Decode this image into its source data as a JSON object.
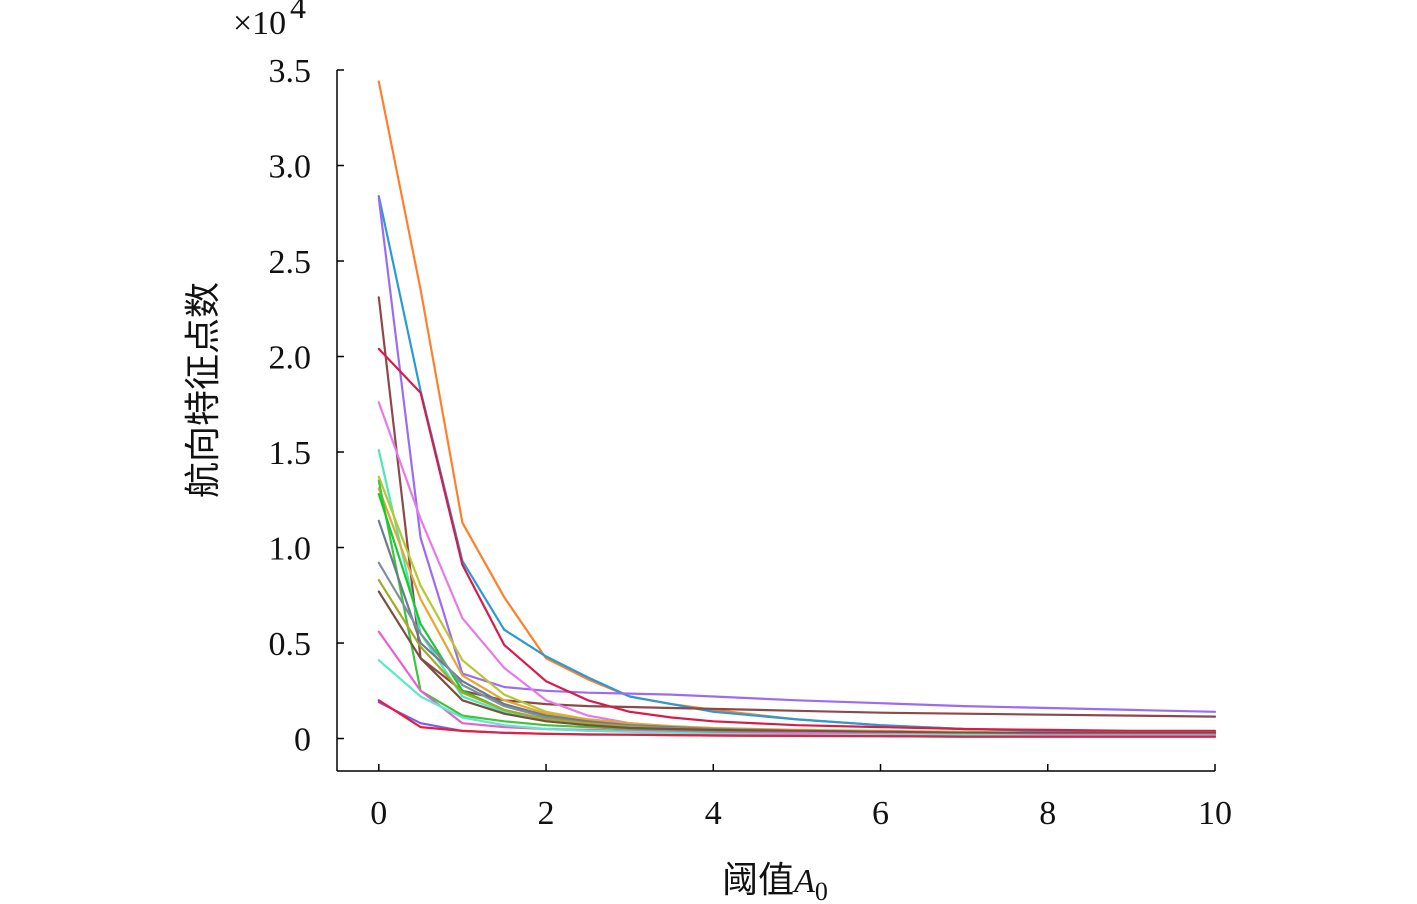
{
  "chart_data": {
    "type": "line",
    "xlabel": "阈值",
    "xlabel_var": "A",
    "xlabel_sub": "0",
    "ylabel": "航向特征点数",
    "y_multiplier_base": "×10",
    "y_multiplier_exp": "4",
    "xlim": [
      -0.5,
      10
    ],
    "ylim": [
      -0.17,
      3.5
    ],
    "x_ticks": [
      0,
      2,
      4,
      6,
      8,
      10
    ],
    "x_tick_labels": [
      "0",
      "2",
      "4",
      "6",
      "8",
      "10"
    ],
    "y_ticks": [
      0,
      0.5,
      1.0,
      1.5,
      2.0,
      2.5,
      3.0,
      3.5
    ],
    "y_tick_labels": [
      "0",
      "0.5",
      "1.0",
      "1.5",
      "2.0",
      "2.5",
      "3.0",
      "3.5"
    ],
    "grid": false,
    "x": [
      0,
      0.5,
      1,
      1.5,
      2,
      2.5,
      3,
      3.5,
      4,
      5,
      6,
      7,
      8,
      9,
      10
    ],
    "series": [
      {
        "color": "#ff7f2a",
        "values": [
          3.44,
          2.35,
          1.13,
          0.74,
          0.42,
          0.31,
          0.22,
          0.18,
          0.15,
          0.1,
          0.07,
          0.05,
          0.04,
          0.035,
          0.03
        ]
      },
      {
        "color": "#2b9ad4",
        "values": [
          2.84,
          1.82,
          0.93,
          0.57,
          0.43,
          0.32,
          0.22,
          0.18,
          0.14,
          0.1,
          0.07,
          0.05,
          0.04,
          0.035,
          0.03
        ]
      },
      {
        "color": "#9b6cf2",
        "values": [
          2.83,
          1.05,
          0.34,
          0.27,
          0.25,
          0.24,
          0.235,
          0.23,
          0.22,
          0.2,
          0.185,
          0.17,
          0.16,
          0.15,
          0.14
        ]
      },
      {
        "color": "#8b4a4a",
        "values": [
          2.31,
          0.42,
          0.25,
          0.2,
          0.18,
          0.17,
          0.165,
          0.16,
          0.155,
          0.145,
          0.135,
          0.13,
          0.125,
          0.12,
          0.115
        ]
      },
      {
        "color": "#d81b4a",
        "values": [
          2.04,
          1.81,
          0.91,
          0.49,
          0.3,
          0.2,
          0.14,
          0.11,
          0.09,
          0.07,
          0.06,
          0.05,
          0.045,
          0.04,
          0.04
        ]
      },
      {
        "color": "#e57ae8",
        "values": [
          1.76,
          1.15,
          0.63,
          0.37,
          0.2,
          0.12,
          0.08,
          0.06,
          0.05,
          0.04,
          0.035,
          0.03,
          0.03,
          0.03,
          0.03
        ]
      },
      {
        "color": "#4de8b5",
        "values": [
          1.51,
          0.55,
          0.22,
          0.14,
          0.1,
          0.08,
          0.06,
          0.05,
          0.04,
          0.03,
          0.025,
          0.02,
          0.02,
          0.02,
          0.02
        ]
      },
      {
        "color": "#b8c632",
        "values": [
          1.37,
          0.8,
          0.41,
          0.23,
          0.14,
          0.1,
          0.08,
          0.06,
          0.05,
          0.04,
          0.035,
          0.03,
          0.03,
          0.03,
          0.03
        ]
      },
      {
        "color": "#e6a632",
        "values": [
          1.31,
          0.73,
          0.33,
          0.2,
          0.13,
          0.1,
          0.08,
          0.065,
          0.055,
          0.045,
          0.04,
          0.035,
          0.03,
          0.03,
          0.03
        ]
      },
      {
        "color": "#3fc43f",
        "values": [
          1.35,
          0.25,
          0.12,
          0.09,
          0.07,
          0.06,
          0.05,
          0.045,
          0.04,
          0.035,
          0.03,
          0.03,
          0.03,
          0.03,
          0.03
        ]
      },
      {
        "color": "#19c930",
        "values": [
          1.28,
          0.6,
          0.25,
          0.15,
          0.1,
          0.08,
          0.06,
          0.05,
          0.045,
          0.04,
          0.035,
          0.03,
          0.03,
          0.03,
          0.03
        ]
      },
      {
        "color": "#6c7a8c",
        "values": [
          1.14,
          0.5,
          0.3,
          0.18,
          0.12,
          0.09,
          0.07,
          0.06,
          0.05,
          0.04,
          0.035,
          0.03,
          0.03,
          0.03,
          0.03
        ]
      },
      {
        "color": "#7f8fa0",
        "values": [
          0.92,
          0.55,
          0.28,
          0.17,
          0.11,
          0.08,
          0.065,
          0.055,
          0.05,
          0.04,
          0.035,
          0.03,
          0.03,
          0.03,
          0.03
        ]
      },
      {
        "color": "#a6a826",
        "values": [
          0.83,
          0.48,
          0.24,
          0.15,
          0.1,
          0.08,
          0.06,
          0.05,
          0.045,
          0.04,
          0.035,
          0.03,
          0.03,
          0.03,
          0.03
        ]
      },
      {
        "color": "#7a4f3f",
        "values": [
          0.77,
          0.42,
          0.2,
          0.13,
          0.09,
          0.07,
          0.055,
          0.05,
          0.045,
          0.04,
          0.035,
          0.03,
          0.03,
          0.03,
          0.03
        ]
      },
      {
        "color": "#e85fd2",
        "values": [
          0.56,
          0.25,
          0.08,
          0.06,
          0.05,
          0.045,
          0.04,
          0.035,
          0.03,
          0.03,
          0.025,
          0.02,
          0.02,
          0.02,
          0.02
        ]
      },
      {
        "color": "#5fe8c8",
        "values": [
          0.41,
          0.22,
          0.11,
          0.07,
          0.05,
          0.04,
          0.035,
          0.03,
          0.025,
          0.02,
          0.02,
          0.02,
          0.015,
          0.015,
          0.015
        ]
      },
      {
        "color": "#7a5cf0",
        "values": [
          0.19,
          0.08,
          0.04,
          0.03,
          0.025,
          0.02,
          0.02,
          0.018,
          0.016,
          0.014,
          0.012,
          0.01,
          0.01,
          0.01,
          0.01
        ]
      },
      {
        "color": "#e0203c",
        "values": [
          0.2,
          0.06,
          0.04,
          0.03,
          0.025,
          0.022,
          0.02,
          0.018,
          0.016,
          0.014,
          0.012,
          0.01,
          0.01,
          0.01,
          0.01
        ]
      }
    ]
  }
}
